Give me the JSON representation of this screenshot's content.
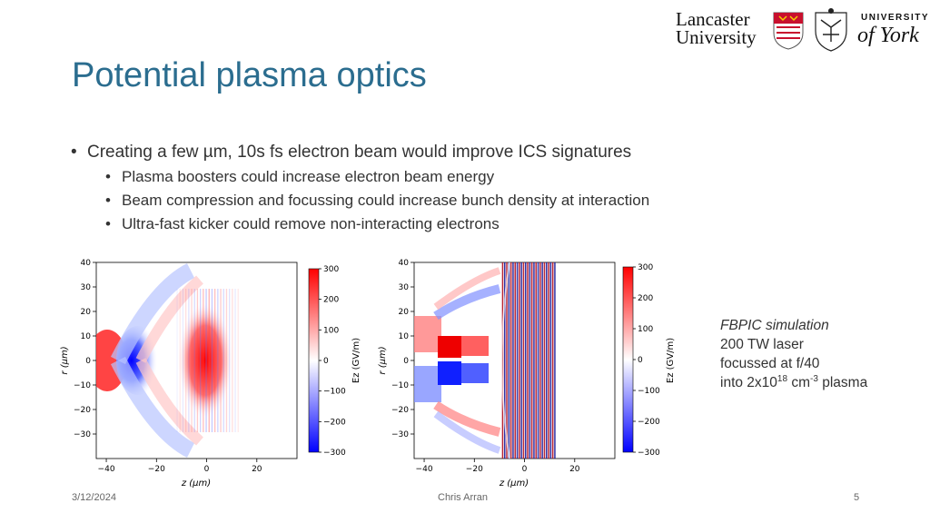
{
  "slide": {
    "title": "Potential plasma optics",
    "bullets": [
      {
        "text": "Creating a few µm, 10s fs electron beam would improve ICS signatures",
        "level": 1
      },
      {
        "text": "Plasma boosters could increase electron beam energy",
        "level": 2
      },
      {
        "text": "Beam compression and focussing could increase bunch density at interaction",
        "level": 2
      },
      {
        "text": "Ultra-fast kicker could remove non-interacting electrons",
        "level": 2
      }
    ],
    "simulation_note": {
      "line1": "FBPIC simulation",
      "line2": "200 TW laser",
      "line3": "focussed at f/40",
      "line4_prefix": "into 2x10",
      "line4_exp": "18",
      "line4_mid": " cm",
      "line4_exp2": "-3",
      "line4_suffix": " plasma"
    },
    "footer": {
      "date": "3/12/2024",
      "author": "Chris Arran",
      "page": "5"
    },
    "logos": {
      "lancaster_line1": "Lancaster",
      "lancaster_line2": "University",
      "york_line1": "UNIVERSITY",
      "york_line2": "of York"
    }
  },
  "chart_data": [
    {
      "type": "heatmap",
      "xlabel": "z (µm)",
      "ylabel": "r (µm)",
      "xticks": [
        -40,
        -20,
        0,
        20
      ],
      "yticks": [
        40,
        30,
        20,
        10,
        0,
        -10,
        -20,
        -30
      ],
      "xlim": [
        -44,
        36
      ],
      "ylim": [
        -40,
        40
      ],
      "colorbar": {
        "label": "Ez (GV/m)",
        "ticks": [
          300,
          200,
          100,
          0,
          -100,
          -200,
          -300
        ],
        "range": [
          -300,
          300
        ]
      },
      "colormap": [
        "#0000ff",
        "#ffffff",
        "#ff0000"
      ]
    },
    {
      "type": "heatmap",
      "xlabel": "z (µm)",
      "ylabel": "r (µm)",
      "xticks": [
        -40,
        -20,
        0,
        20
      ],
      "yticks": [
        40,
        30,
        20,
        10,
        0,
        -10,
        -20,
        -30
      ],
      "xlim": [
        -44,
        36
      ],
      "ylim": [
        -40,
        40
      ],
      "colorbar": {
        "label": "Ez (GV/m)",
        "ticks": [
          300,
          200,
          100,
          0,
          -100,
          -200,
          -300
        ],
        "range": [
          -300,
          300
        ]
      },
      "colormap": [
        "#0000ff",
        "#ffffff",
        "#ff0000"
      ]
    }
  ]
}
